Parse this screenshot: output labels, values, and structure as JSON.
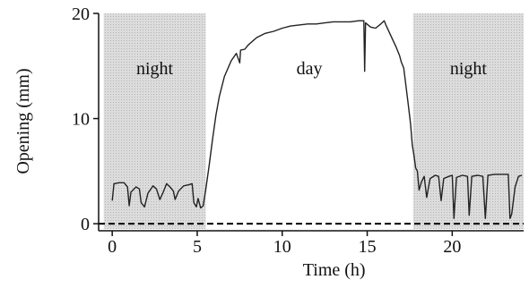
{
  "chart_data": {
    "type": "line",
    "title": "",
    "xlabel": "Time (h)",
    "ylabel": "Opening (mm)",
    "xlim": [
      -0.8,
      24.2
    ],
    "ylim": [
      -0.5,
      20
    ],
    "xticks": [
      0,
      5,
      10,
      15,
      20
    ],
    "yticks": [
      0,
      10,
      20
    ],
    "grid": false,
    "shaded_regions": [
      {
        "label": "night",
        "x_start": -0.5,
        "x_end": 5.5,
        "color": "#d9d9d9"
      },
      {
        "label": "day",
        "x_start": 5.5,
        "x_end": 17.7,
        "color": "#ffffff"
      },
      {
        "label": "night",
        "x_start": 17.7,
        "x_end": 24.2,
        "color": "#d9d9d9"
      }
    ],
    "reference_line": {
      "y": 0,
      "style": "dashed",
      "color": "#000000"
    },
    "series": [
      {
        "color": "#222222",
        "points": [
          [
            0,
            2.2
          ],
          [
            0.1,
            3.8
          ],
          [
            0.4,
            3.9
          ],
          [
            0.7,
            3.9
          ],
          [
            0.9,
            3.5
          ],
          [
            1.0,
            1.7
          ],
          [
            1.1,
            3.0
          ],
          [
            1.4,
            3.5
          ],
          [
            1.6,
            3.3
          ],
          [
            1.7,
            2.0
          ],
          [
            1.9,
            1.6
          ],
          [
            2.1,
            2.9
          ],
          [
            2.4,
            3.6
          ],
          [
            2.6,
            3.3
          ],
          [
            2.8,
            2.3
          ],
          [
            3.0,
            3.0
          ],
          [
            3.2,
            3.8
          ],
          [
            3.4,
            3.5
          ],
          [
            3.6,
            3.1
          ],
          [
            3.7,
            2.3
          ],
          [
            3.9,
            3.1
          ],
          [
            4.2,
            3.6
          ],
          [
            4.5,
            3.7
          ],
          [
            4.7,
            3.8
          ],
          [
            4.8,
            2.0
          ],
          [
            4.95,
            1.6
          ],
          [
            5.05,
            2.4
          ],
          [
            5.2,
            1.5
          ],
          [
            5.35,
            1.7
          ],
          [
            5.5,
            3.2
          ],
          [
            5.7,
            5.5
          ],
          [
            5.9,
            8.0
          ],
          [
            6.1,
            10.3
          ],
          [
            6.3,
            12.1
          ],
          [
            6.6,
            14.0
          ],
          [
            7.0,
            15.5
          ],
          [
            7.3,
            16.2
          ],
          [
            7.5,
            15.3
          ],
          [
            7.55,
            16.5
          ],
          [
            7.8,
            16.6
          ],
          [
            8.0,
            17.0
          ],
          [
            8.5,
            17.7
          ],
          [
            9.0,
            18.1
          ],
          [
            9.5,
            18.3
          ],
          [
            10.0,
            18.6
          ],
          [
            10.5,
            18.8
          ],
          [
            11.0,
            18.9
          ],
          [
            11.5,
            19.0
          ],
          [
            12.0,
            19.0
          ],
          [
            12.5,
            19.1
          ],
          [
            13.0,
            19.2
          ],
          [
            13.5,
            19.2
          ],
          [
            14.0,
            19.2
          ],
          [
            14.5,
            19.3
          ],
          [
            14.8,
            19.3
          ],
          [
            14.85,
            14.5
          ],
          [
            14.9,
            19.1
          ],
          [
            15.2,
            18.7
          ],
          [
            15.5,
            18.6
          ],
          [
            15.8,
            19.0
          ],
          [
            16.0,
            19.3
          ],
          [
            16.1,
            18.9
          ],
          [
            16.3,
            18.2
          ],
          [
            16.5,
            17.5
          ],
          [
            16.7,
            16.8
          ],
          [
            16.9,
            16.0
          ],
          [
            17.0,
            15.4
          ],
          [
            17.15,
            14.8
          ],
          [
            17.25,
            13.5
          ],
          [
            17.4,
            11.5
          ],
          [
            17.55,
            9.5
          ],
          [
            17.65,
            7.5
          ],
          [
            17.75,
            6.5
          ],
          [
            17.85,
            5.3
          ],
          [
            17.95,
            5.0
          ],
          [
            18.05,
            3.2
          ],
          [
            18.2,
            4.0
          ],
          [
            18.35,
            4.5
          ],
          [
            18.5,
            2.5
          ],
          [
            18.7,
            4.3
          ],
          [
            19.0,
            4.6
          ],
          [
            19.2,
            4.5
          ],
          [
            19.35,
            2.2
          ],
          [
            19.5,
            4.3
          ],
          [
            19.8,
            4.5
          ],
          [
            20.0,
            4.6
          ],
          [
            20.1,
            0.5
          ],
          [
            20.25,
            4.4
          ],
          [
            20.6,
            4.6
          ],
          [
            20.9,
            4.5
          ],
          [
            21.0,
            0.8
          ],
          [
            21.15,
            4.5
          ],
          [
            21.5,
            4.6
          ],
          [
            21.8,
            4.5
          ],
          [
            21.95,
            0.5
          ],
          [
            22.1,
            4.6
          ],
          [
            22.5,
            4.7
          ],
          [
            22.9,
            4.7
          ],
          [
            23.3,
            4.7
          ],
          [
            23.4,
            0.5
          ],
          [
            23.5,
            0.9
          ],
          [
            23.7,
            3.5
          ],
          [
            23.9,
            4.5
          ],
          [
            24.1,
            4.6
          ]
        ]
      }
    ]
  }
}
